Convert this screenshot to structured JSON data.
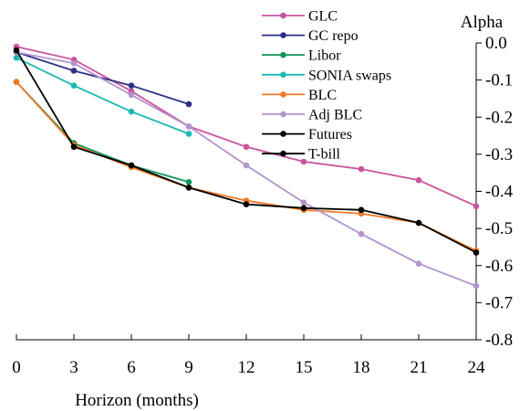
{
  "chart_data": {
    "type": "line",
    "title": "",
    "xlabel": "Horizon (months)",
    "ylabel": "Alpha",
    "x": [
      0,
      3,
      6,
      9,
      12,
      15,
      18,
      21,
      24
    ],
    "xlim": [
      0,
      24
    ],
    "ylim": [
      -0.8,
      0.0
    ],
    "yticks": [
      0.0,
      -0.1,
      -0.2,
      -0.3,
      -0.4,
      -0.5,
      -0.6,
      -0.7,
      -0.8
    ],
    "ytick_labels": [
      "0.0",
      "-0.1",
      "-0.2",
      "-0.3",
      "-0.4",
      "-0.5",
      "-0.6",
      "-0.7",
      "-0.8"
    ],
    "xtick_labels": [
      "0",
      "3",
      "6",
      "9",
      "12",
      "15",
      "18",
      "21",
      "24"
    ],
    "grid": false,
    "legend_position": "top-right",
    "series": [
      {
        "name": "GLC",
        "color": "#c9559e",
        "x": [
          0,
          3,
          6,
          9,
          12,
          15,
          18,
          21,
          24
        ],
        "values": [
          -0.01,
          -0.045,
          -0.13,
          -0.225,
          -0.28,
          -0.32,
          -0.34,
          -0.37,
          -0.44
        ]
      },
      {
        "name": "GC repo",
        "color": "#2b2f86",
        "x": [
          0,
          3,
          6,
          9
        ],
        "values": [
          -0.025,
          -0.075,
          -0.115,
          -0.165
        ]
      },
      {
        "name": "Libor",
        "color": "#14955a",
        "x": [
          0,
          3,
          6,
          9
        ],
        "values": [
          -0.105,
          -0.27,
          -0.33,
          -0.375
        ]
      },
      {
        "name": "SONIA swaps",
        "color": "#1ab8b3",
        "x": [
          0,
          3,
          6,
          9
        ],
        "values": [
          -0.04,
          -0.115,
          -0.185,
          -0.245
        ]
      },
      {
        "name": "BLC",
        "color": "#f07a27",
        "x": [
          0,
          3,
          6,
          9,
          12,
          15,
          18,
          21,
          24
        ],
        "values": [
          -0.105,
          -0.275,
          -0.335,
          -0.39,
          -0.425,
          -0.45,
          -0.46,
          -0.485,
          -0.56
        ]
      },
      {
        "name": "Adj BLC",
        "color": "#b293cc",
        "x": [
          0,
          3,
          6,
          9,
          12,
          15,
          18,
          21,
          24
        ],
        "values": [
          -0.025,
          -0.055,
          -0.14,
          -0.225,
          -0.33,
          -0.43,
          -0.515,
          -0.595,
          -0.655
        ]
      },
      {
        "name": "Futures",
        "color": "#000000",
        "x": [
          0,
          3,
          6,
          9,
          12,
          15,
          18,
          21,
          24
        ],
        "values": [
          -0.02,
          -0.28,
          -0.33,
          -0.39,
          -0.435,
          -0.445,
          -0.45,
          -0.485,
          -0.565
        ]
      },
      {
        "name": "T-bill",
        "color": "#000000",
        "x": [],
        "values": []
      }
    ]
  }
}
